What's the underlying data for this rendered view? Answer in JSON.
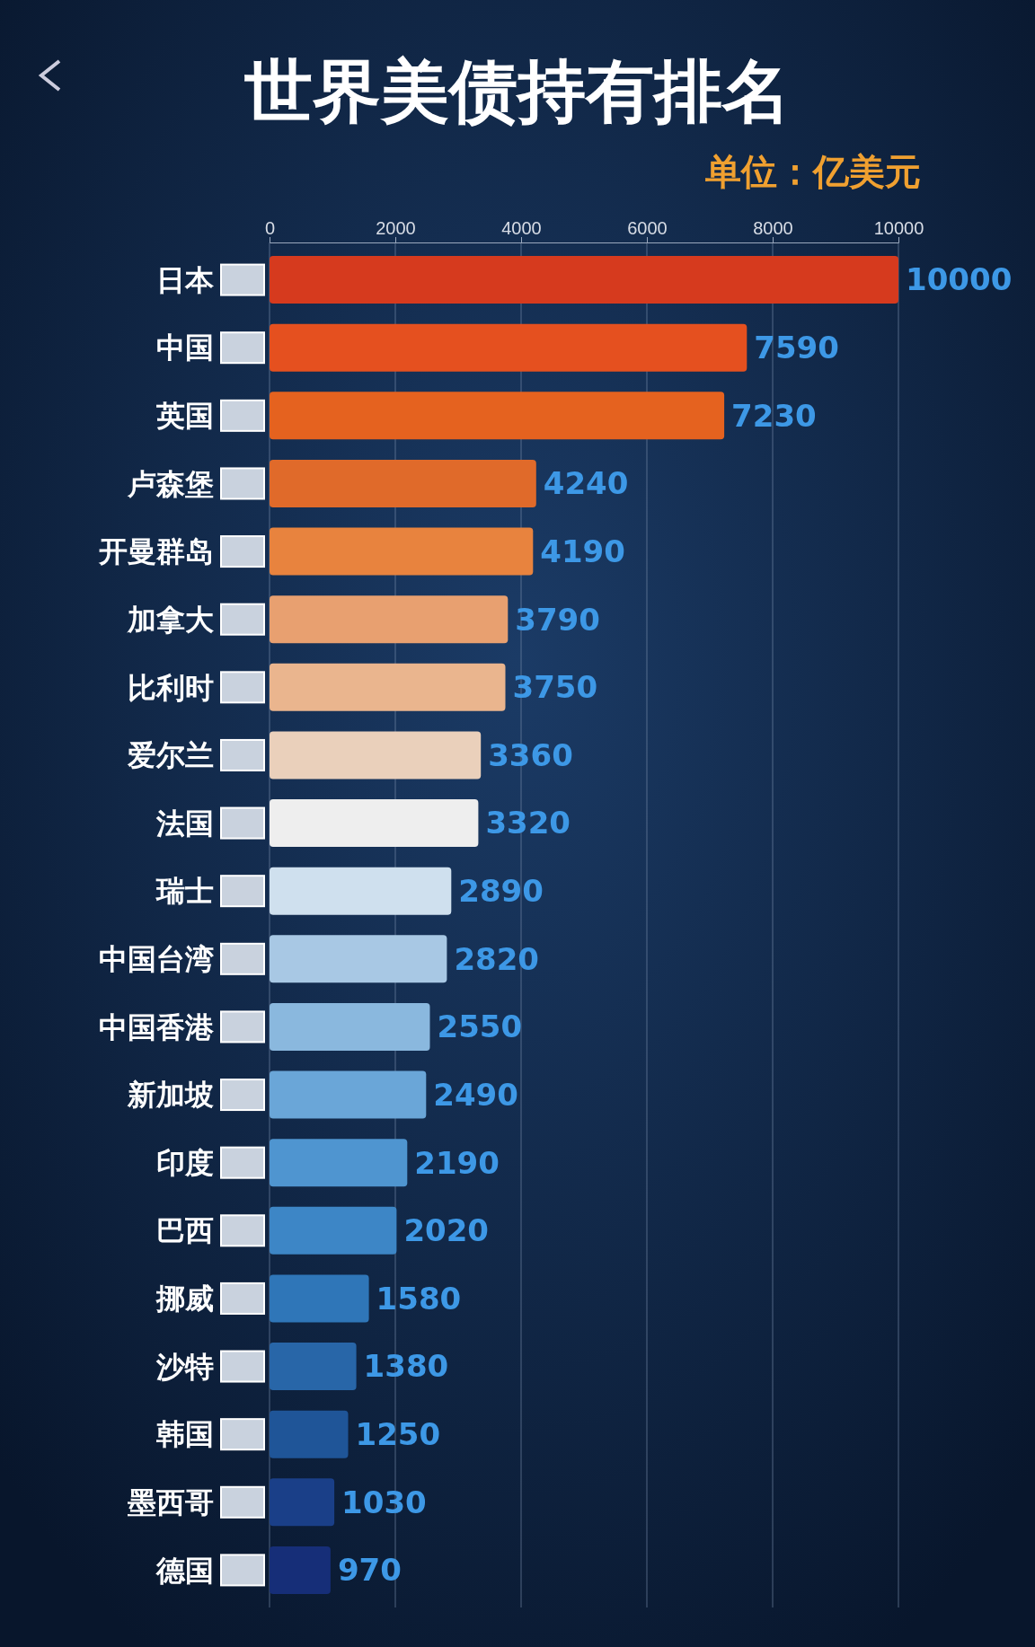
{
  "chart_data": {
    "type": "bar",
    "orientation": "horizontal",
    "title": "世界美债持有排名",
    "subtitle": "单位：亿美元",
    "categories": [
      "日本",
      "中国",
      "英国",
      "卢森堡",
      "开曼群岛",
      "加拿大",
      "比利时",
      "爱尔兰",
      "法国",
      "瑞士",
      "中国台湾",
      "中国香港",
      "新加坡",
      "印度",
      "巴西",
      "挪威",
      "沙特",
      "韩国",
      "墨西哥",
      "德国"
    ],
    "values": [
      10000,
      7590,
      7230,
      4240,
      4190,
      3790,
      3750,
      3360,
      3320,
      2890,
      2820,
      2550,
      2490,
      2190,
      2020,
      1580,
      1380,
      1250,
      1030,
      970
    ],
    "colors": [
      "#d63a1e",
      "#e5501f",
      "#e5621f",
      "#e06a2a",
      "#e8833e",
      "#e8a070",
      "#eab58e",
      "#ead0bb",
      "#eeeeee",
      "#cfe0ee",
      "#a8c8e4",
      "#8ab8de",
      "#6aa6d8",
      "#4f95d0",
      "#3d86c6",
      "#2f76b8",
      "#2866a8",
      "#1f5598",
      "#1a3f88",
      "#162e78"
    ],
    "xlim": [
      0,
      10000
    ],
    "xticks": [
      0,
      2000,
      4000,
      6000,
      8000,
      10000
    ],
    "grid": "x",
    "data_labels": true
  }
}
